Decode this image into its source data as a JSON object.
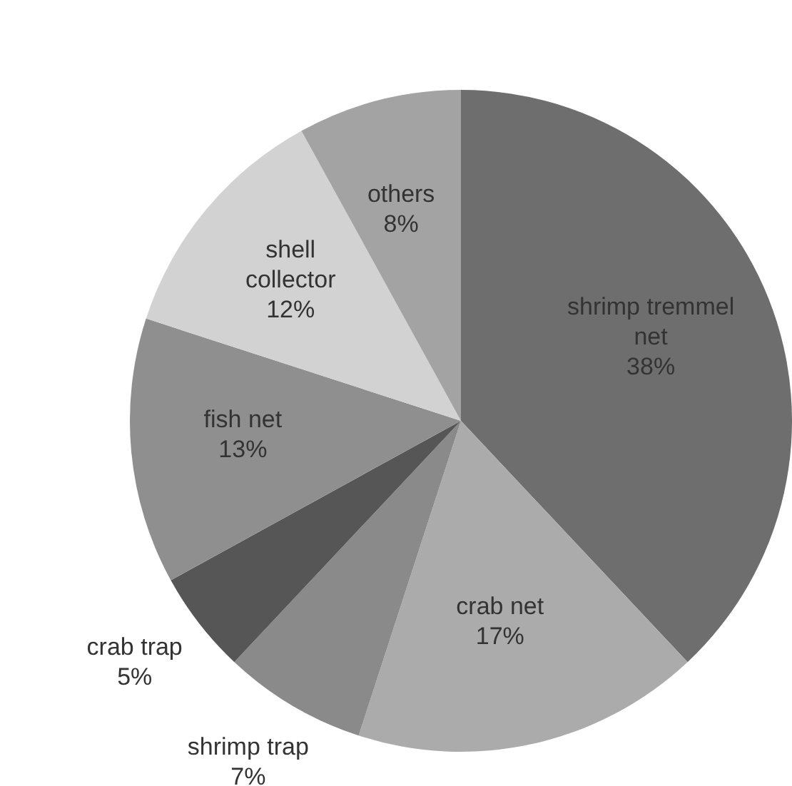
{
  "chart_data": {
    "type": "pie",
    "categories": [
      "shrimp tremmel net",
      "crab net",
      "shrimp trap",
      "crab trap",
      "fish net",
      "shell collector",
      "others"
    ],
    "values": [
      38,
      17,
      7,
      5,
      13,
      12,
      8
    ],
    "colors": [
      "#6e6e6e",
      "#ababab",
      "#8a8a8a",
      "#565656",
      "#8f8f8f",
      "#d2d2d2",
      "#a3a3a3"
    ],
    "value_labels": [
      "38%",
      "17%",
      "7%",
      "5%",
      "13%",
      "12%",
      "8%"
    ]
  }
}
